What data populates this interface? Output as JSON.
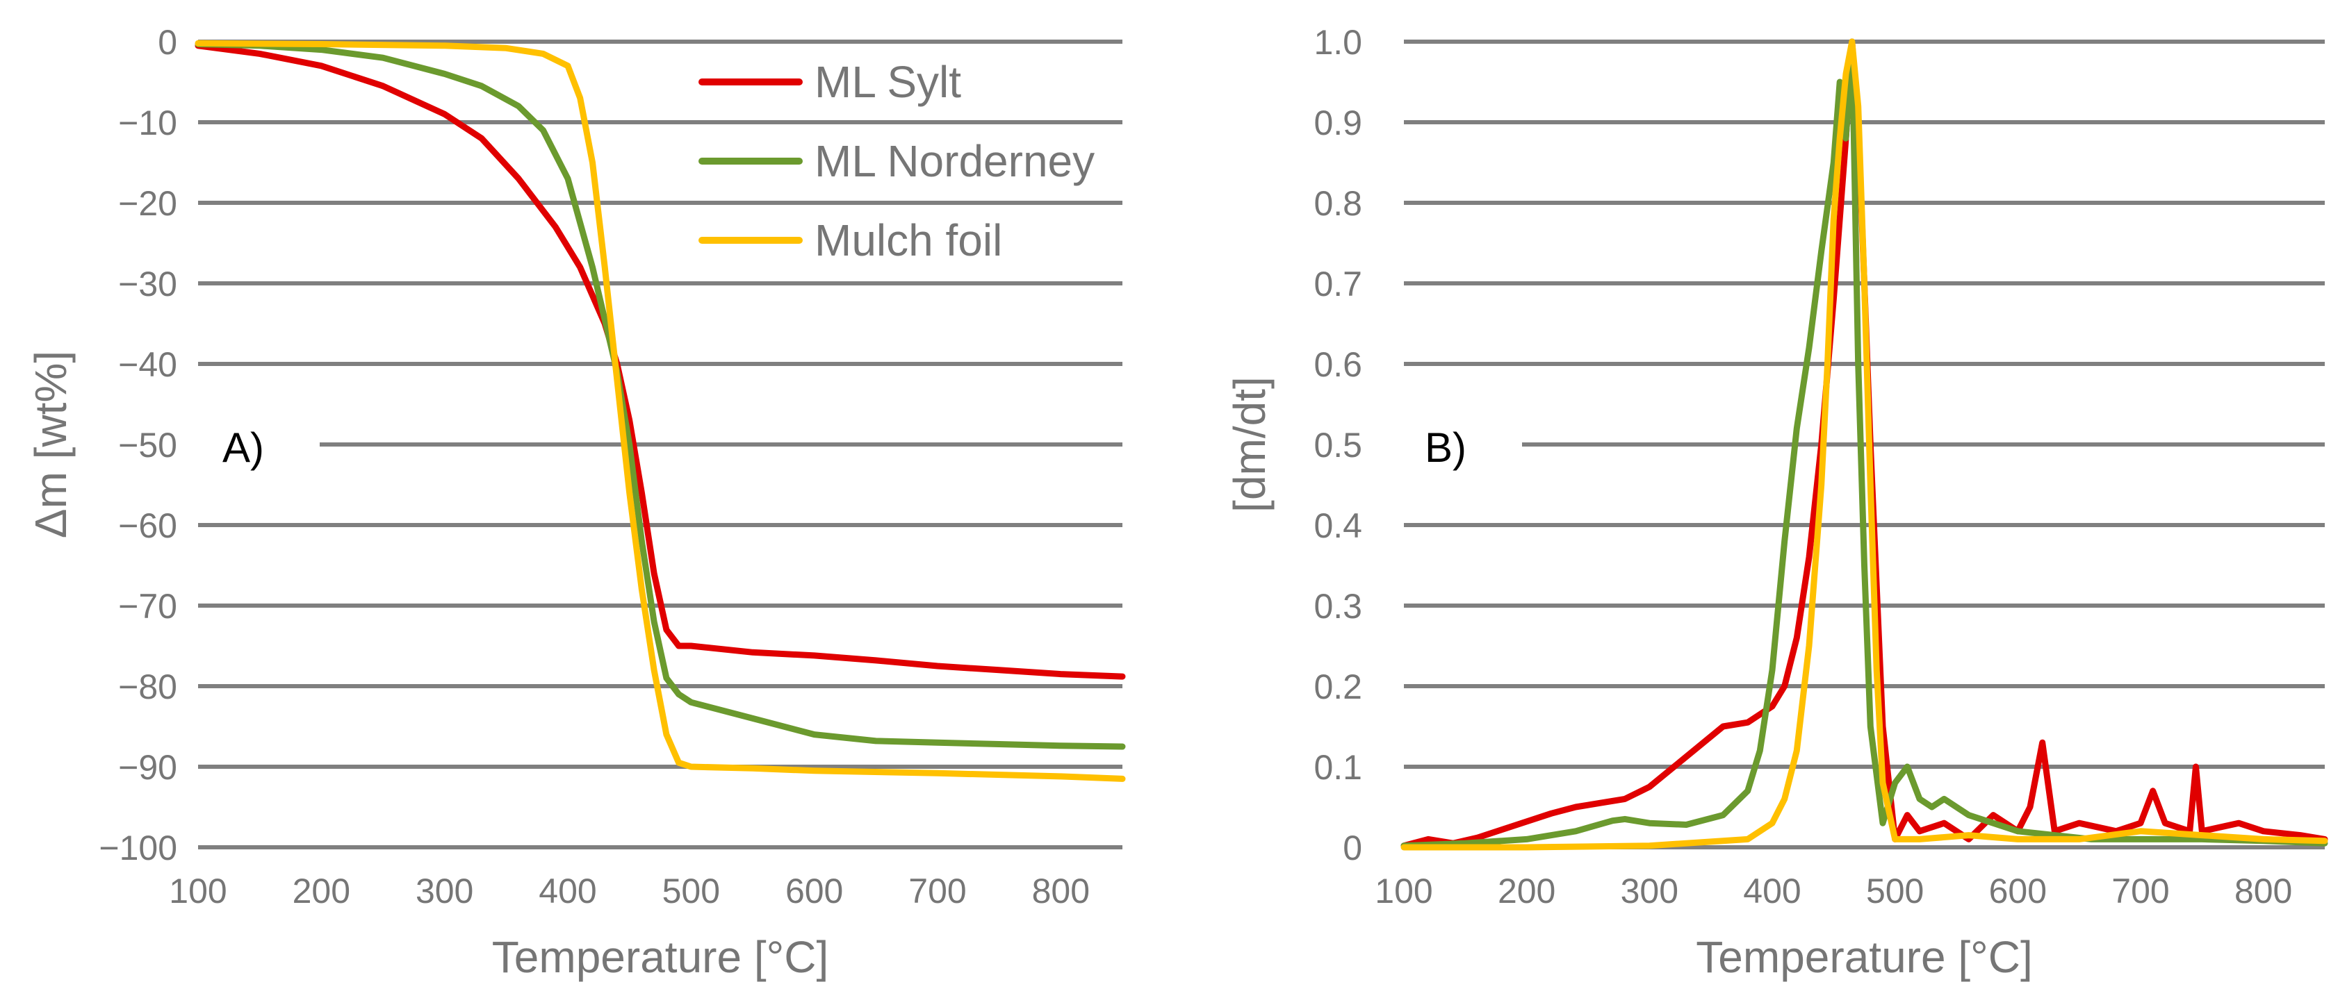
{
  "chart_data": [
    {
      "type": "line",
      "panel_label": "A)",
      "xlabel": "Temperature [°C]",
      "ylabel": "Δm [wt%]",
      "xlim": [
        100,
        850
      ],
      "ylim": [
        -100,
        0
      ],
      "xticks": [
        "100",
        "200",
        "300",
        "400",
        "500",
        "600",
        "700",
        "800"
      ],
      "yticks": [
        "0",
        "−10",
        "−20",
        "−30",
        "−40",
        "−50",
        "−60",
        "−70",
        "−80",
        "−90",
        "−100"
      ],
      "grid": true,
      "legend_position": "top-right",
      "series": [
        {
          "name": "ML Sylt",
          "color": "#e00000",
          "x": [
            100,
            150,
            200,
            250,
            300,
            330,
            360,
            390,
            410,
            430,
            440,
            450,
            460,
            470,
            480,
            490,
            500,
            550,
            600,
            650,
            700,
            750,
            800,
            850
          ],
          "y": [
            -0.5,
            -1.5,
            -3,
            -5.5,
            -9,
            -12,
            -17,
            -23,
            -28,
            -35,
            -40,
            -47,
            -56,
            -66,
            -73,
            -75,
            -75,
            -75.8,
            -76.2,
            -76.8,
            -77.5,
            -78,
            -78.5,
            -78.8
          ]
        },
        {
          "name": "ML Norderney",
          "color": "#6b9a2e",
          "x": [
            100,
            150,
            200,
            250,
            300,
            330,
            360,
            380,
            400,
            420,
            440,
            450,
            460,
            470,
            480,
            490,
            500,
            550,
            600,
            650,
            700,
            750,
            800,
            850
          ],
          "y": [
            -0.3,
            -0.5,
            -1,
            -2,
            -4,
            -5.5,
            -8,
            -11,
            -17,
            -28,
            -41,
            -50,
            -62,
            -72,
            -79,
            -81,
            -82,
            -84,
            -86,
            -86.8,
            -87,
            -87.2,
            -87.4,
            -87.5
          ]
        },
        {
          "name": "Mulch foil",
          "color": "#ffc000",
          "x": [
            100,
            200,
            300,
            350,
            380,
            400,
            410,
            420,
            430,
            440,
            450,
            460,
            470,
            480,
            490,
            500,
            550,
            600,
            700,
            800,
            850
          ],
          "y": [
            -0.2,
            -0.3,
            -0.5,
            -0.8,
            -1.5,
            -3,
            -7,
            -15,
            -28,
            -42,
            -56,
            -68,
            -78,
            -86,
            -89.5,
            -90,
            -90.2,
            -90.5,
            -90.8,
            -91.2,
            -91.5
          ]
        }
      ]
    },
    {
      "type": "line",
      "panel_label": "B)",
      "xlabel": "Temperature [°C]",
      "ylabel": "[dm/dt]",
      "xlim": [
        100,
        850
      ],
      "ylim": [
        0,
        1.0
      ],
      "xticks": [
        "100",
        "200",
        "300",
        "400",
        "500",
        "600",
        "700",
        "800"
      ],
      "yticks": [
        "0",
        "0.1",
        "0.2",
        "0.3",
        "0.4",
        "0.5",
        "0.6",
        "0.7",
        "0.8",
        "0.9",
        "1.0"
      ],
      "grid": true,
      "series": [
        {
          "name": "ML Sylt",
          "color": "#e00000",
          "x": [
            100,
            120,
            140,
            160,
            180,
            200,
            220,
            240,
            260,
            280,
            300,
            320,
            340,
            360,
            380,
            400,
            410,
            420,
            430,
            440,
            450,
            460,
            465,
            470,
            480,
            490,
            500,
            510,
            520,
            540,
            560,
            580,
            600,
            610,
            620,
            630,
            650,
            680,
            700,
            710,
            720,
            740,
            745,
            750,
            780,
            800,
            830,
            850
          ],
          "y": [
            0.002,
            0.01,
            0.005,
            0.012,
            0.022,
            0.032,
            0.042,
            0.05,
            0.055,
            0.06,
            0.075,
            0.1,
            0.125,
            0.15,
            0.155,
            0.175,
            0.2,
            0.26,
            0.36,
            0.5,
            0.68,
            0.88,
            1.0,
            0.9,
            0.5,
            0.15,
            0.01,
            0.04,
            0.02,
            0.03,
            0.01,
            0.04,
            0.02,
            0.05,
            0.13,
            0.02,
            0.03,
            0.02,
            0.03,
            0.07,
            0.03,
            0.02,
            0.1,
            0.02,
            0.03,
            0.02,
            0.015,
            0.01
          ]
        },
        {
          "name": "ML Norderney",
          "color": "#6b9a2e",
          "x": [
            100,
            150,
            200,
            240,
            270,
            280,
            300,
            330,
            360,
            380,
            390,
            400,
            410,
            420,
            430,
            440,
            450,
            455,
            460,
            465,
            470,
            475,
            480,
            490,
            500,
            510,
            520,
            530,
            540,
            560,
            580,
            600,
            630,
            660,
            700,
            750,
            800,
            850
          ],
          "y": [
            0.002,
            0.005,
            0.01,
            0.02,
            0.033,
            0.035,
            0.03,
            0.028,
            0.04,
            0.07,
            0.12,
            0.22,
            0.38,
            0.52,
            0.62,
            0.74,
            0.85,
            0.95,
            0.88,
            1.0,
            0.6,
            0.35,
            0.15,
            0.03,
            0.08,
            0.1,
            0.06,
            0.05,
            0.06,
            0.04,
            0.03,
            0.02,
            0.015,
            0.01,
            0.01,
            0.01,
            0.008,
            0.005
          ]
        },
        {
          "name": "Mulch foil",
          "color": "#ffc000",
          "x": [
            100,
            200,
            300,
            380,
            400,
            410,
            420,
            430,
            440,
            445,
            450,
            455,
            460,
            465,
            470,
            475,
            480,
            485,
            490,
            500,
            520,
            560,
            600,
            650,
            700,
            750,
            800,
            850
          ],
          "y": [
            0.0,
            0.0,
            0.002,
            0.01,
            0.03,
            0.06,
            0.12,
            0.25,
            0.45,
            0.6,
            0.78,
            0.88,
            0.96,
            1.0,
            0.92,
            0.7,
            0.45,
            0.22,
            0.08,
            0.01,
            0.01,
            0.015,
            0.01,
            0.01,
            0.02,
            0.015,
            0.01,
            0.008
          ]
        }
      ]
    }
  ]
}
